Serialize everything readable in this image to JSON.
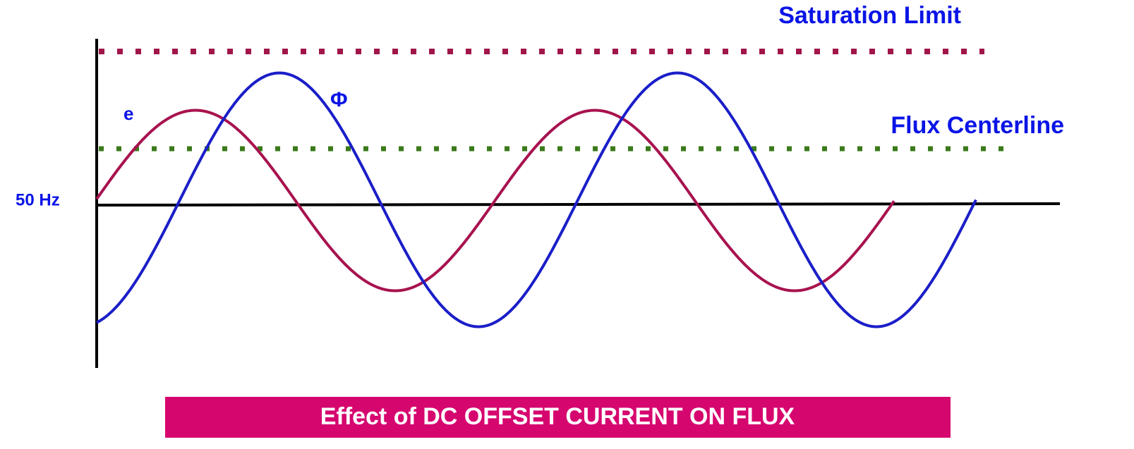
{
  "labels": {
    "saturation_limit": "Saturation Limit",
    "flux_centerline": "Flux Centerline",
    "frequency": "50 Hz",
    "voltage_curve": "e",
    "flux_curve": "Φ"
  },
  "caption": "Effect of DC OFFSET CURRENT ON FLUX"
}
